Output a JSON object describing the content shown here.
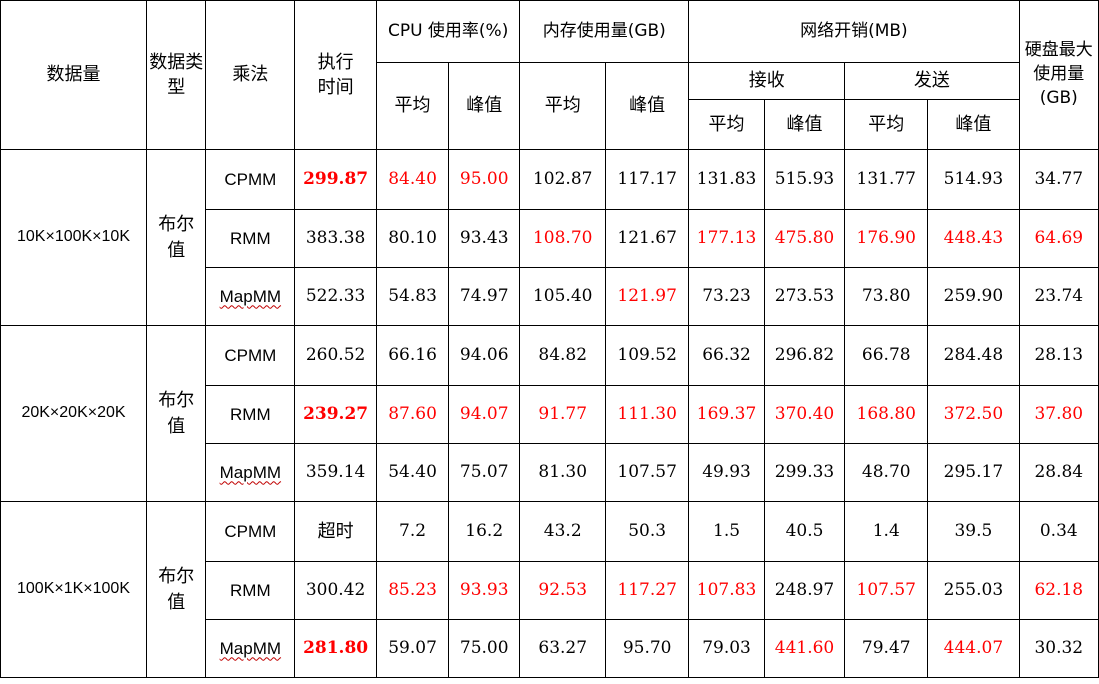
{
  "headers": {
    "data_size": "数据量",
    "data_type": "数据类型",
    "multiply": "乘法",
    "exec_time": "执行时间",
    "cpu": "CPU 使用率(%)",
    "memory": "内存使用量(GB)",
    "network": "网络开销(MB)",
    "receive": "接收",
    "send": "发送",
    "disk": "硬盘最大使用量(GB)",
    "avg": "平均",
    "peak": "峰值"
  },
  "groups": [
    {
      "size": "10K×100K×10K",
      "type": "布尔值",
      "rows": [
        {
          "method": "CPMM",
          "time": "299.87",
          "cpu_avg": "84.40",
          "cpu_peak": "95.00",
          "mem_avg": "102.87",
          "mem_peak": "117.17",
          "recv_avg": "131.83",
          "recv_peak": "515.93",
          "send_avg": "131.77",
          "send_peak": "514.93",
          "disk": "34.77"
        },
        {
          "method": "RMM",
          "time": "383.38",
          "cpu_avg": "80.10",
          "cpu_peak": "93.43",
          "mem_avg": "108.70",
          "mem_peak": "121.67",
          "recv_avg": "177.13",
          "recv_peak": "475.80",
          "send_avg": "176.90",
          "send_peak": "448.43",
          "disk": "64.69"
        },
        {
          "method": "MapMM",
          "time": "522.33",
          "cpu_avg": "54.83",
          "cpu_peak": "74.97",
          "mem_avg": "105.40",
          "mem_peak": "121.97",
          "recv_avg": "73.23",
          "recv_peak": "273.53",
          "send_avg": "73.80",
          "send_peak": "259.90",
          "disk": "23.74"
        }
      ]
    },
    {
      "size": "20K×20K×20K",
      "type": "布尔值",
      "rows": [
        {
          "method": "CPMM",
          "time": "260.52",
          "cpu_avg": "66.16",
          "cpu_peak": "94.06",
          "mem_avg": "84.82",
          "mem_peak": "109.52",
          "recv_avg": "66.32",
          "recv_peak": "296.82",
          "send_avg": "66.78",
          "send_peak": "284.48",
          "disk": "28.13"
        },
        {
          "method": "RMM",
          "time": "239.27",
          "cpu_avg": "87.60",
          "cpu_peak": "94.07",
          "mem_avg": "91.77",
          "mem_peak": "111.30",
          "recv_avg": "169.37",
          "recv_peak": "370.40",
          "send_avg": "168.80",
          "send_peak": "372.50",
          "disk": "37.80"
        },
        {
          "method": "MapMM",
          "time": "359.14",
          "cpu_avg": "54.40",
          "cpu_peak": "75.07",
          "mem_avg": "81.30",
          "mem_peak": "107.57",
          "recv_avg": "49.93",
          "recv_peak": "299.33",
          "send_avg": "48.70",
          "send_peak": "295.17",
          "disk": "28.84"
        }
      ]
    },
    {
      "size": "100K×1K×100K",
      "type": "布尔值",
      "rows": [
        {
          "method": "CPMM",
          "time": "超时",
          "cpu_avg": "7.2",
          "cpu_peak": "16.2",
          "mem_avg": "43.2",
          "mem_peak": "50.3",
          "recv_avg": "1.5",
          "recv_peak": "40.5",
          "send_avg": "1.4",
          "send_peak": "39.5",
          "disk": "0.34"
        },
        {
          "method": "RMM",
          "time": "300.42",
          "cpu_avg": "85.23",
          "cpu_peak": "93.93",
          "mem_avg": "92.53",
          "mem_peak": "117.27",
          "recv_avg": "107.83",
          "recv_peak": "248.97",
          "send_avg": "107.57",
          "send_peak": "255.03",
          "disk": "62.18"
        },
        {
          "method": "MapMM",
          "time": "281.80",
          "cpu_avg": "59.07",
          "cpu_peak": "75.00",
          "mem_avg": "63.27",
          "mem_peak": "95.70",
          "recv_avg": "79.03",
          "recv_peak": "441.60",
          "send_avg": "79.47",
          "send_peak": "444.07",
          "disk": "30.32"
        }
      ]
    }
  ],
  "highlight": {
    "red_color": "#ff0000",
    "bold_red_cells": [
      "g0.r0.time",
      "g1.r1.time",
      "g2.r2.time"
    ],
    "red_cells": [
      "g0.r0.cpu_avg",
      "g0.r0.cpu_peak",
      "g0.r1.mem_avg",
      "g0.r1.recv_avg",
      "g0.r1.recv_peak",
      "g0.r1.send_avg",
      "g0.r1.send_peak",
      "g0.r1.disk",
      "g0.r2.mem_peak",
      "g1.r1.cpu_avg",
      "g1.r1.cpu_peak",
      "g1.r1.mem_avg",
      "g1.r1.mem_peak",
      "g1.r1.recv_avg",
      "g1.r1.recv_peak",
      "g1.r1.send_avg",
      "g1.r1.send_peak",
      "g1.r1.disk",
      "g2.r1.cpu_avg",
      "g2.r1.cpu_peak",
      "g2.r1.mem_avg",
      "g2.r1.mem_peak",
      "g2.r1.recv_avg",
      "g2.r1.send_avg",
      "g2.r1.disk",
      "g2.r2.recv_peak",
      "g2.r2.send_peak"
    ]
  }
}
